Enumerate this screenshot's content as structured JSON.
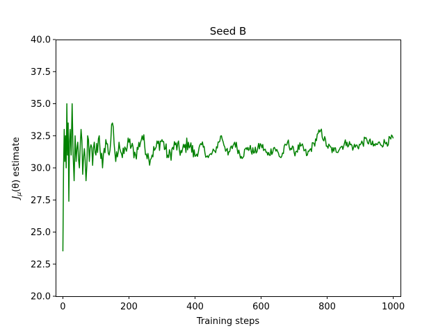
{
  "chart_data": {
    "type": "line",
    "title": "Seed B",
    "xlabel": "Training steps",
    "ylabel": "J_μ(θ) estimate",
    "ylabel_parts": {
      "main": "J",
      "sub": "μ",
      "rest": "(θ) estimate"
    },
    "xlim": [
      -22,
      1022
    ],
    "ylim": [
      20.0,
      40.0
    ],
    "xticks": [
      0,
      200,
      400,
      600,
      800,
      1000
    ],
    "xtick_labels": [
      "0",
      "200",
      "400",
      "600",
      "800",
      "1000"
    ],
    "yticks": [
      20.0,
      22.5,
      25.0,
      27.5,
      30.0,
      32.5,
      35.0,
      37.5,
      40.0
    ],
    "ytick_labels": [
      "20.0",
      "22.5",
      "25.0",
      "27.5",
      "30.0",
      "32.5",
      "35.0",
      "37.5",
      "40.0"
    ],
    "grid": false,
    "legend": "none",
    "series": [
      {
        "color": "#008000",
        "keypoints": {
          "x": [
            0,
            2,
            4,
            6,
            8,
            10,
            12,
            14,
            16,
            18,
            20,
            22,
            25,
            28,
            31,
            34,
            37,
            40,
            45,
            50,
            55,
            60,
            65,
            70,
            75,
            80,
            85,
            90,
            95,
            100,
            110,
            120,
            130,
            140,
            150,
            160,
            170,
            180,
            190,
            200,
            220,
            240,
            260,
            280,
            300,
            320,
            340,
            360,
            380,
            400,
            420,
            440,
            460,
            480,
            500,
            520,
            540,
            560,
            580,
            600,
            620,
            640,
            660,
            680,
            700,
            720,
            740,
            760,
            780,
            800,
            820,
            840,
            860,
            880,
            900,
            920,
            940,
            960,
            980,
            1000
          ],
          "y": [
            23.5,
            30.0,
            33.0,
            30.5,
            32.5,
            30.0,
            35.0,
            31.0,
            33.5,
            27.4,
            32.0,
            33.0,
            31.0,
            35.0,
            31.0,
            29.0,
            32.5,
            30.5,
            32.0,
            30.0,
            33.0,
            29.5,
            31.5,
            29.0,
            32.5,
            30.5,
            31.8,
            30.2,
            32.0,
            31.0,
            32.5,
            30.0,
            32.2,
            31.0,
            33.5,
            30.5,
            32.0,
            30.8,
            31.5,
            32.0,
            31.0,
            32.5,
            30.7,
            31.5,
            32.2,
            30.8,
            31.8,
            31.2,
            32.0,
            30.9,
            31.8,
            30.8,
            31.3,
            32.5,
            31.0,
            32.0,
            30.9,
            31.6,
            31.2,
            31.8,
            31.0,
            31.6,
            30.8,
            32.0,
            31.2,
            31.7,
            31.0,
            31.9,
            32.9,
            31.7,
            31.3,
            31.6,
            32.0,
            31.6,
            31.8,
            32.2,
            31.7,
            31.9,
            32.0,
            32.3
          ]
        }
      }
    ]
  }
}
